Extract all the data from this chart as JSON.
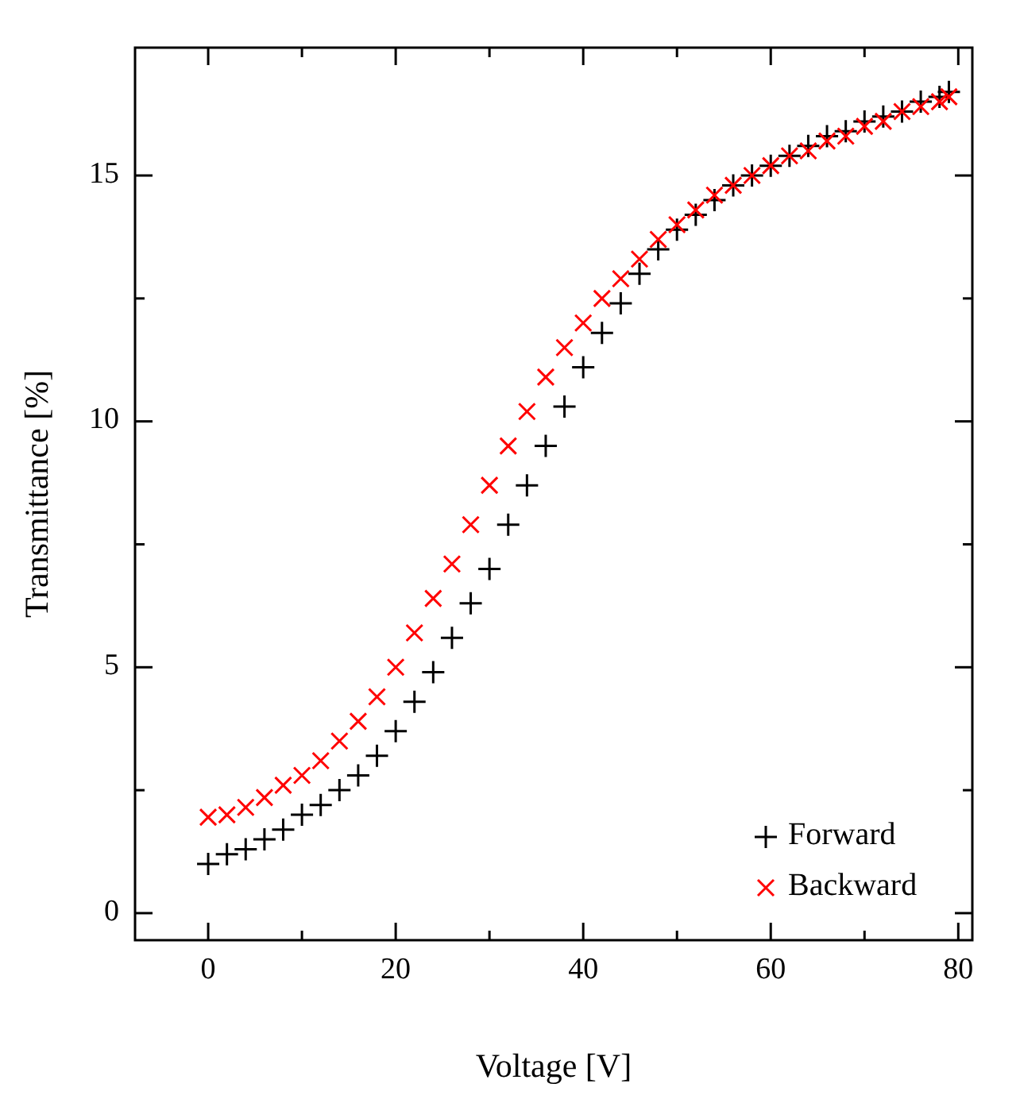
{
  "chart_data": {
    "type": "scatter",
    "xlabel": "Voltage  [V]",
    "ylabel": "Transmittance  [%]",
    "xlim": [
      -7.8,
      81.5
    ],
    "ylim": [
      -0.55,
      17.6
    ],
    "xticks": [
      0,
      {
        "value": 10,
        "label": null
      },
      20,
      {
        "value": 30,
        "label": null
      },
      40,
      {
        "value": 50,
        "label": null
      },
      60,
      {
        "value": 70,
        "label": null
      },
      80
    ],
    "yticks": [
      0,
      {
        "value": 2.5,
        "label": null
      },
      5,
      {
        "value": 7.5,
        "label": null
      },
      10,
      {
        "value": 12.5,
        "label": null
      },
      15
    ],
    "grid": false,
    "legend": "bottom right",
    "series": [
      {
        "name": "Forward",
        "color": "#000000",
        "marker": "plus",
        "x": [
          0,
          2,
          4,
          6,
          8,
          10,
          12,
          14,
          16,
          18,
          20,
          22,
          24,
          26,
          28,
          30,
          32,
          34,
          36,
          38,
          40,
          42,
          44,
          46,
          48,
          50,
          52,
          54,
          56,
          58,
          60,
          62,
          64,
          66,
          68,
          70,
          72,
          74,
          76,
          78,
          79
        ],
        "values": [
          1.0,
          1.2,
          1.3,
          1.5,
          1.7,
          2.0,
          2.2,
          2.5,
          2.8,
          3.2,
          3.7,
          4.3,
          4.9,
          5.6,
          6.3,
          7.0,
          7.9,
          8.7,
          9.5,
          10.3,
          11.1,
          11.8,
          12.4,
          13.0,
          13.5,
          13.9,
          14.2,
          14.5,
          14.8,
          15.0,
          15.2,
          15.4,
          15.6,
          15.8,
          15.9,
          16.1,
          16.2,
          16.3,
          16.5,
          16.6,
          16.7
        ]
      },
      {
        "name": "Backward",
        "color": "#ff0000",
        "marker": "cross",
        "x": [
          0,
          2,
          4,
          6,
          8,
          10,
          12,
          14,
          16,
          18,
          20,
          22,
          24,
          26,
          28,
          30,
          32,
          34,
          36,
          38,
          40,
          42,
          44,
          46,
          48,
          50,
          52,
          54,
          56,
          58,
          60,
          62,
          64,
          66,
          68,
          70,
          72,
          74,
          76,
          78,
          79
        ],
        "values": [
          1.95,
          2.0,
          2.15,
          2.35,
          2.6,
          2.8,
          3.1,
          3.5,
          3.9,
          4.4,
          5.0,
          5.7,
          6.4,
          7.1,
          7.9,
          8.7,
          9.5,
          10.2,
          10.9,
          11.5,
          12.0,
          12.5,
          12.9,
          13.3,
          13.7,
          14.0,
          14.3,
          14.6,
          14.8,
          15.0,
          15.2,
          15.4,
          15.5,
          15.7,
          15.8,
          16.0,
          16.1,
          16.3,
          16.4,
          16.5,
          16.6
        ]
      }
    ]
  }
}
